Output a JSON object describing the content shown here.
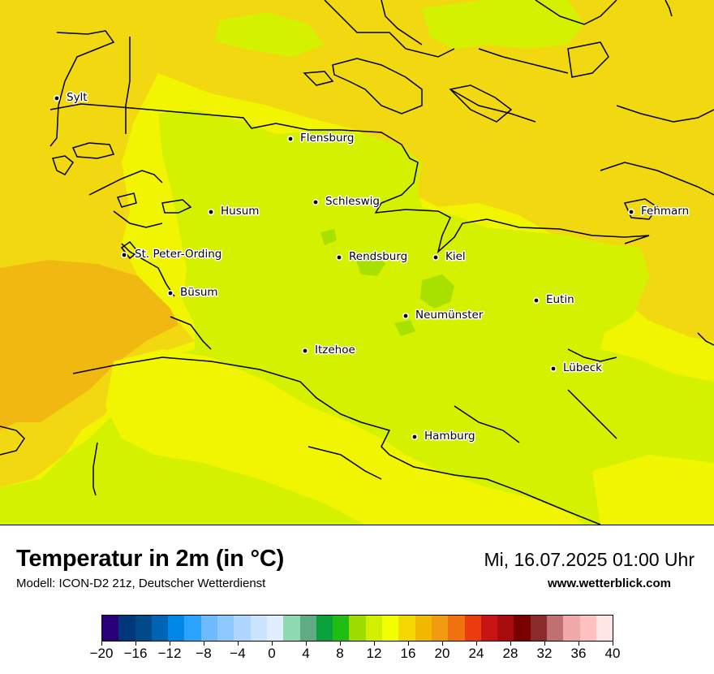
{
  "header": {
    "title": "Temperatur in 2m (in °C)",
    "model": "Modell: ICON-D2 21z, Deutscher Wetterdienst",
    "datetime": "Mi, 16.07.2025 01:00 Uhr",
    "website": "www.wetterblick.com"
  },
  "map": {
    "cities": [
      {
        "name": "Sylt",
        "key": "sylt"
      },
      {
        "name": "Flensburg",
        "key": "flensburg"
      },
      {
        "name": "Schleswig",
        "key": "schleswig"
      },
      {
        "name": "Husum",
        "key": "husum"
      },
      {
        "name": "Fehmarn",
        "key": "fehmarn"
      },
      {
        "name": "St. Peter-Ording",
        "key": "st-peter-ording"
      },
      {
        "name": "Rendsburg",
        "key": "rendsburg"
      },
      {
        "name": "Kiel",
        "key": "kiel"
      },
      {
        "name": "Büsum",
        "key": "buesum"
      },
      {
        "name": "Eutin",
        "key": "eutin"
      },
      {
        "name": "Neumünster",
        "key": "neumuenster"
      },
      {
        "name": "Itzehoe",
        "key": "itzehoe"
      },
      {
        "name": "Lübeck",
        "key": "luebeck"
      },
      {
        "name": "Hamburg",
        "key": "hamburg"
      }
    ],
    "field_colors": {
      "t14_16": "#d4f200",
      "t12_14": "#a8e000",
      "t16_18": "#f2f500",
      "t18_20": "#f2d810",
      "t20_22": "#f2b812"
    }
  },
  "legend": {
    "unit": "°C",
    "min": -20,
    "max": 40,
    "step": 2,
    "colors": [
      "#2a007a",
      "#00367a",
      "#004a8c",
      "#0064b4",
      "#0088e8",
      "#2aa2ff",
      "#6ebaff",
      "#8ec8ff",
      "#aed6ff",
      "#cae4ff",
      "#e0eeff",
      "#8ed8b4",
      "#60aa84",
      "#0aa03c",
      "#20be14",
      "#9edc00",
      "#d0f000",
      "#f2ff00",
      "#f2d800",
      "#f2b800",
      "#f29a10",
      "#f27212",
      "#ea3c0c",
      "#c81414",
      "#a80c0c",
      "#7a0000",
      "#8a2a2a",
      "#c07070",
      "#f0a8a8",
      "#ffc0c0",
      "#ffe6e6"
    ],
    "tick_labels": [
      "−20",
      "−16",
      "−12",
      "−8",
      "−4",
      "0",
      "4",
      "8",
      "12",
      "16",
      "20",
      "24",
      "28",
      "32",
      "36",
      "40"
    ]
  }
}
